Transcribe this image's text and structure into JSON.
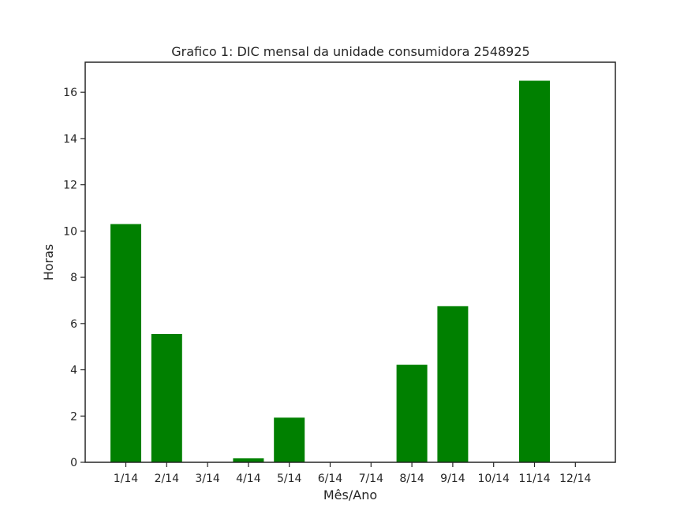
{
  "chart_data": {
    "type": "bar",
    "title": "Grafico 1: DIC mensal da unidade consumidora 2548925",
    "xlabel": "Mês/Ano",
    "ylabel": "Horas",
    "categories": [
      "1/14",
      "2/14",
      "3/14",
      "4/14",
      "5/14",
      "6/14",
      "7/14",
      "8/14",
      "9/14",
      "10/14",
      "11/14",
      "12/14"
    ],
    "values": [
      10.3,
      5.55,
      0,
      0.17,
      1.93,
      0,
      0,
      4.22,
      6.75,
      0,
      16.5,
      0
    ],
    "ylim": [
      0,
      17.3
    ],
    "yticks": [
      0,
      2,
      4,
      6,
      8,
      10,
      12,
      14,
      16
    ],
    "bar_color": "#008000",
    "grid": false,
    "legend": "none"
  }
}
